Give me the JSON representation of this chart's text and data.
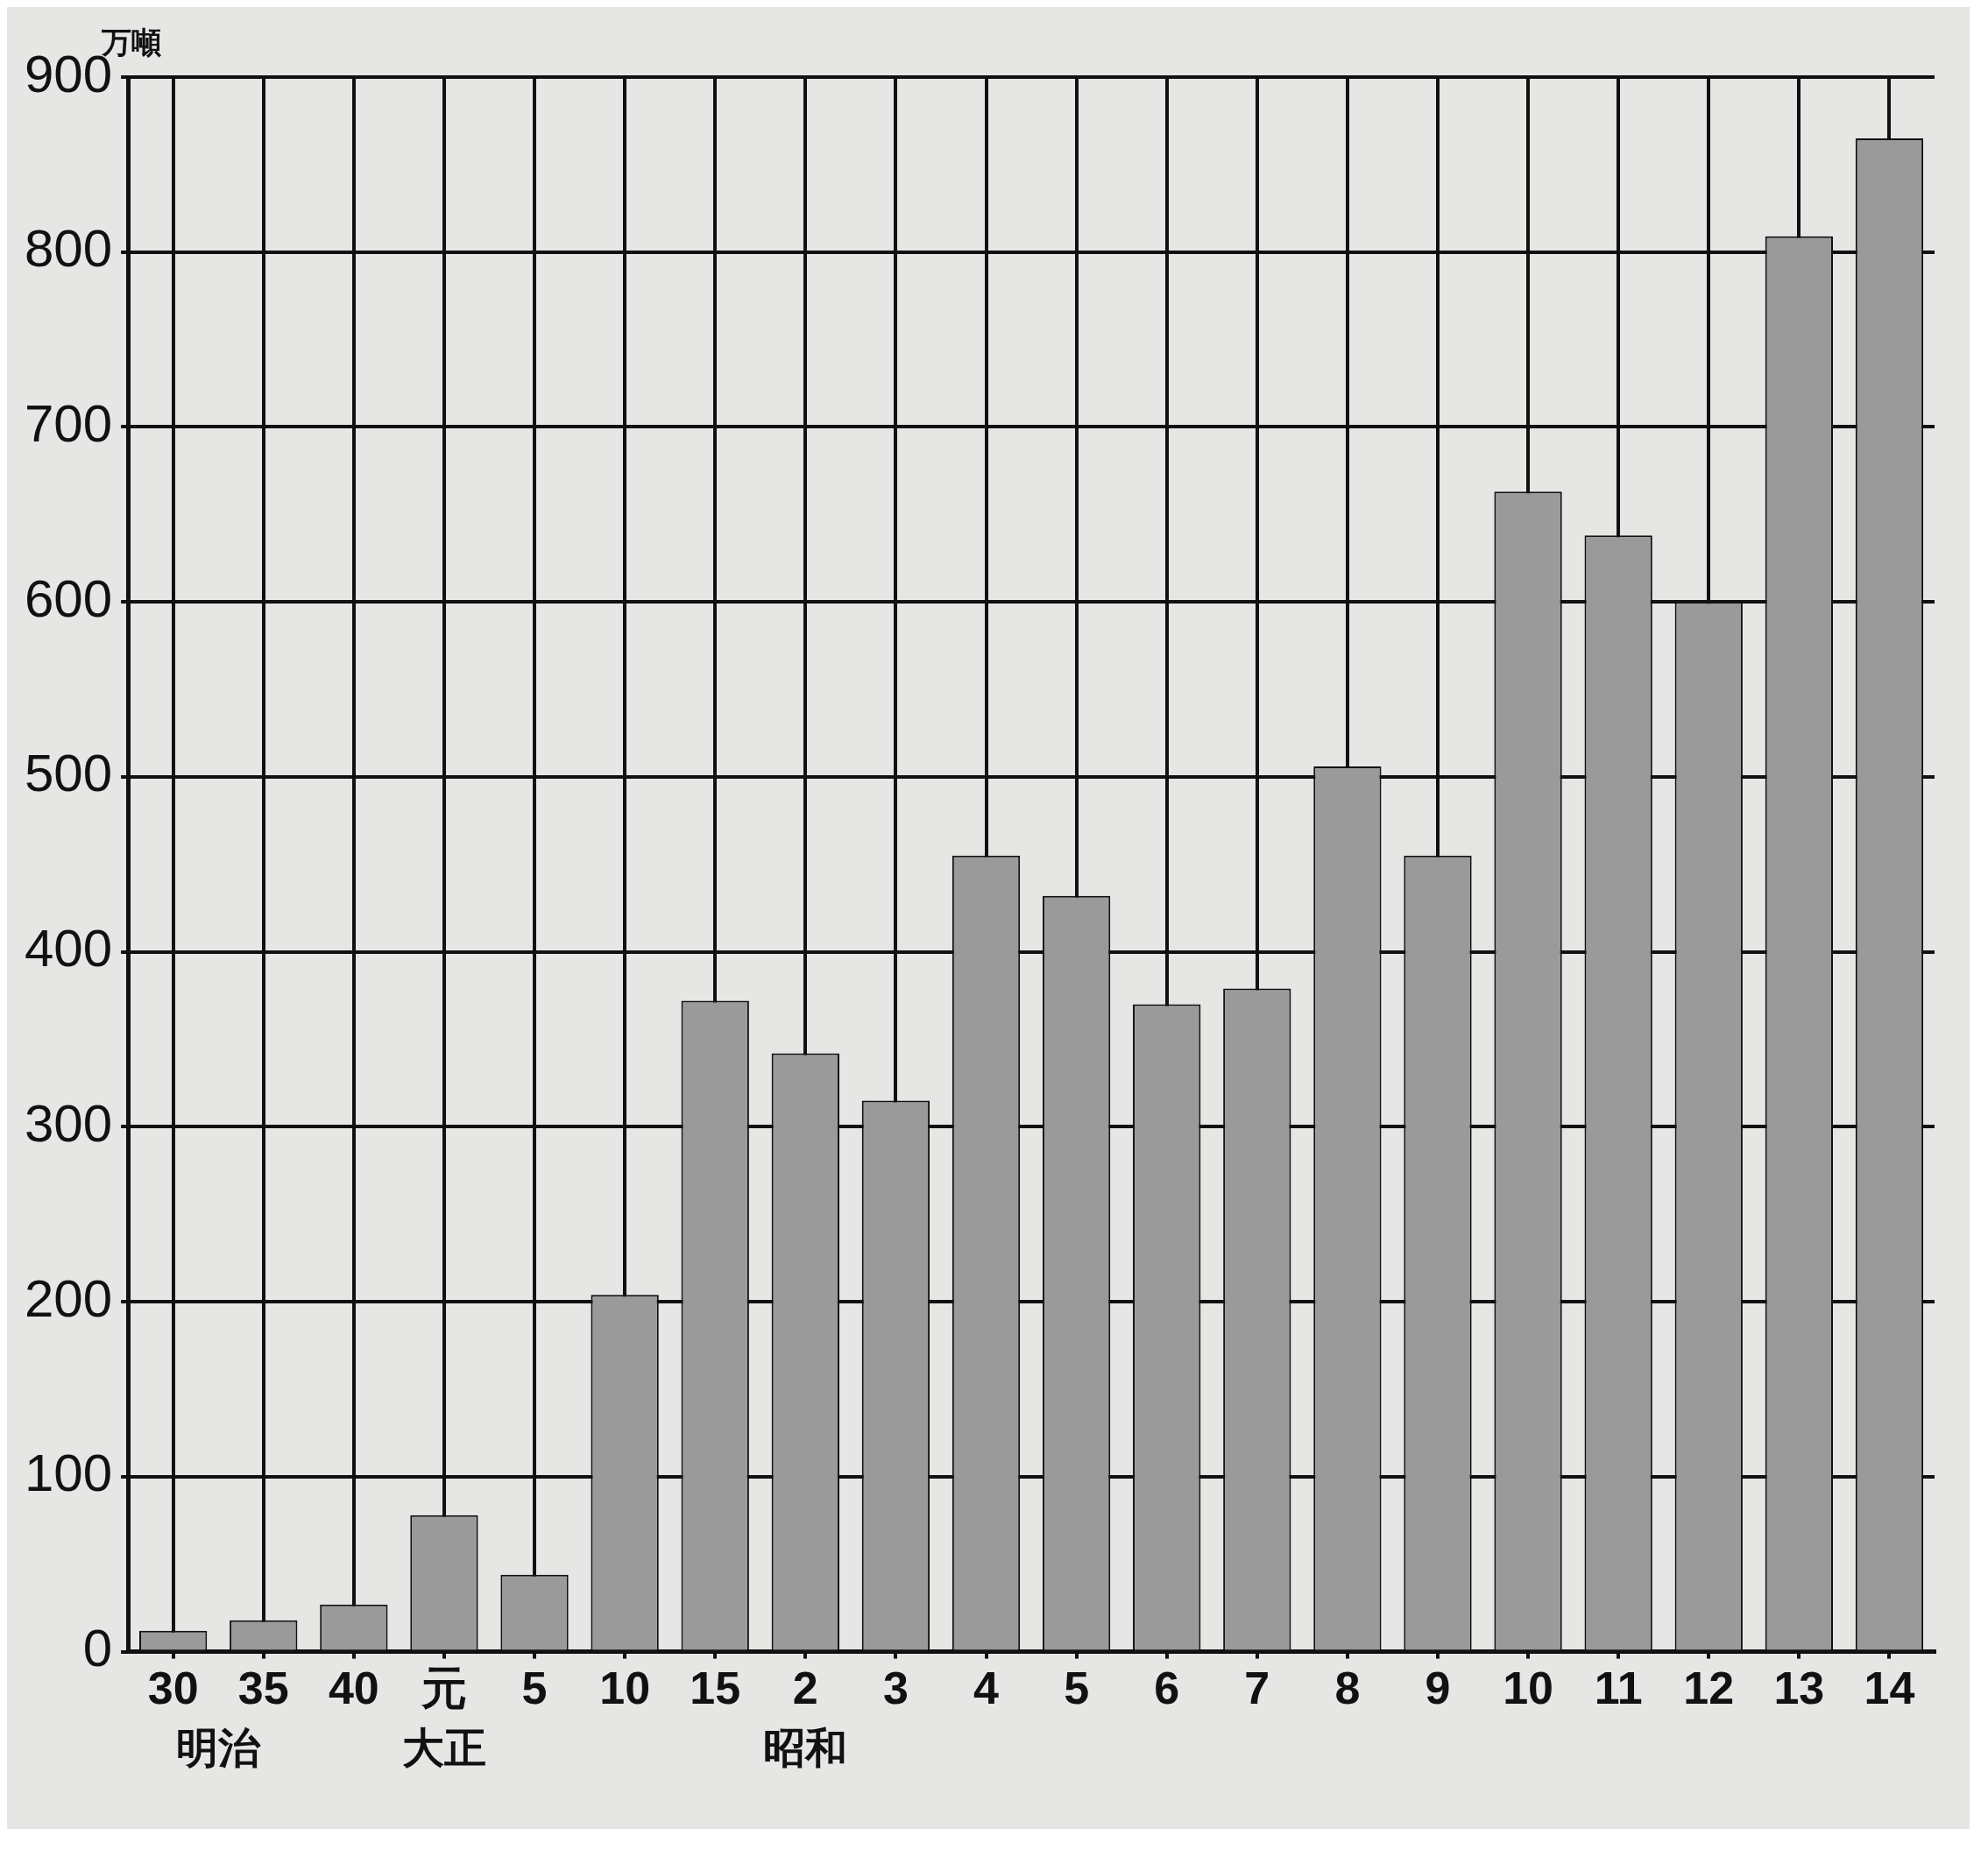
{
  "chart_data": {
    "type": "bar",
    "ylabel": "万噸",
    "categories": [
      "30",
      "35",
      "40",
      "元",
      "5",
      "10",
      "15",
      "2",
      "3",
      "4",
      "5",
      "6",
      "7",
      "8",
      "9",
      "10",
      "11",
      "12",
      "13",
      "14"
    ],
    "values": [
      12,
      18,
      27,
      78,
      44,
      204,
      372,
      342,
      315,
      455,
      432,
      370,
      379,
      506,
      455,
      663,
      638,
      600,
      809,
      865
    ],
    "color": "#9a9a9a",
    "ylim": [
      0,
      900
    ],
    "yticks": [
      0,
      100,
      200,
      300,
      400,
      500,
      600,
      700,
      800,
      900
    ],
    "grid": true,
    "annotations": [
      "明治",
      "大正",
      "昭和"
    ]
  }
}
